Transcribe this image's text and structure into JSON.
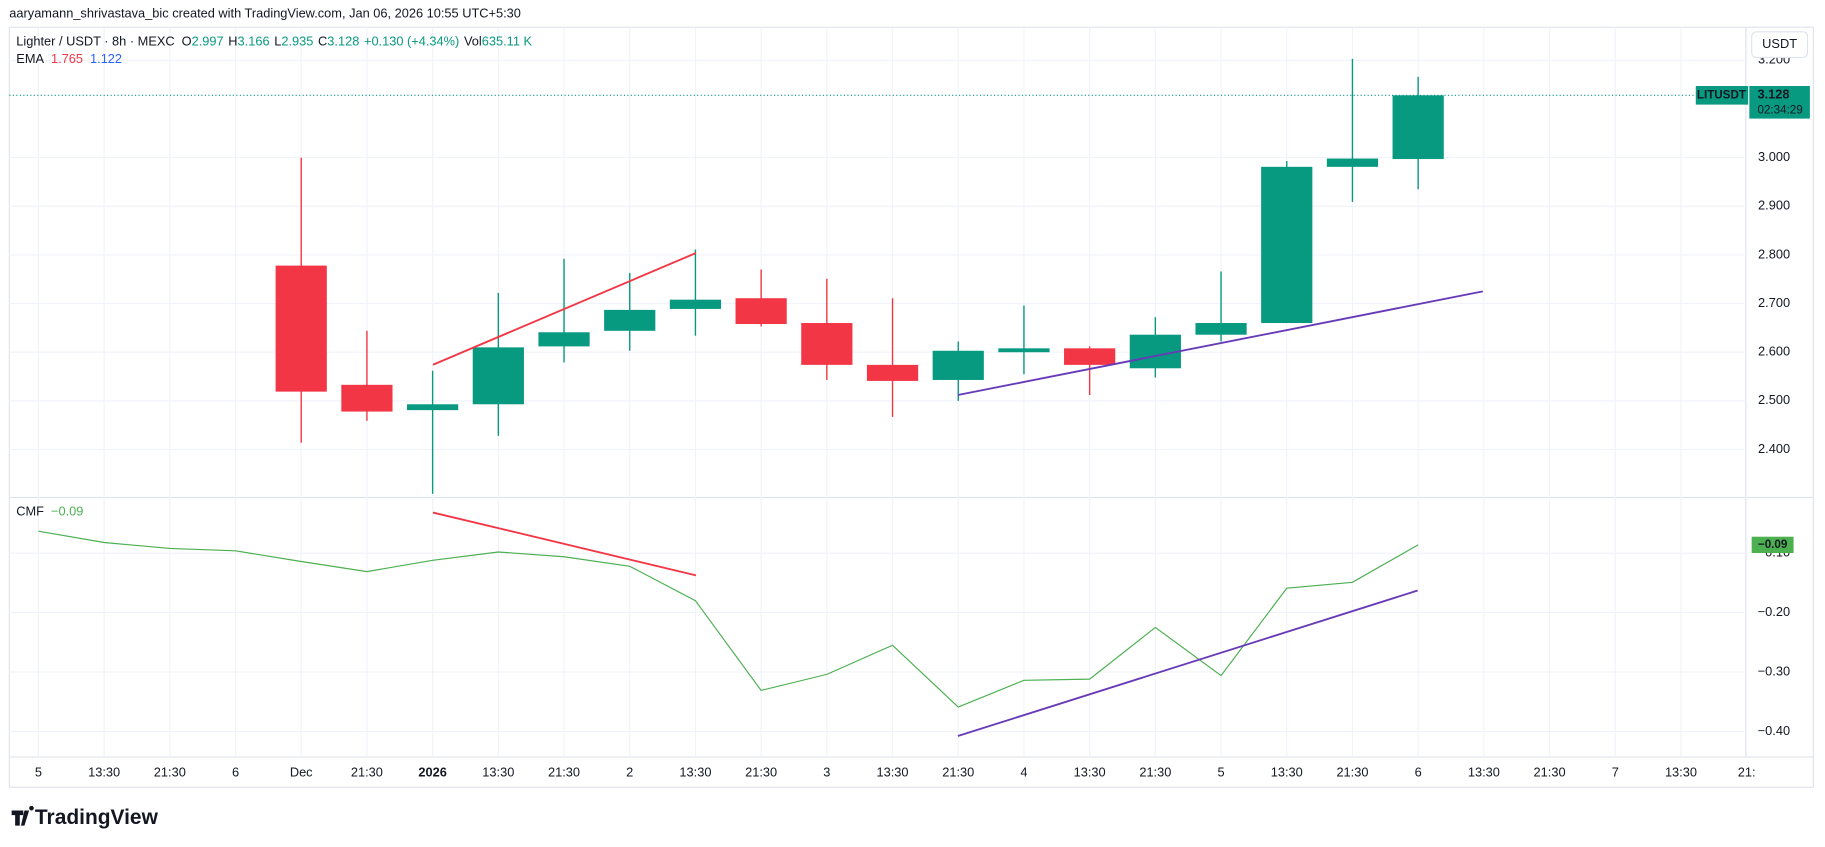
{
  "credit": "aaryamann_shrivastava_bic created with TradingView.com, Jan 06, 2026 10:55 UTC+5:30",
  "legend": {
    "symbol": "Lighter / USDT · 8h · MEXC",
    "ohlc": [
      {
        "label": "O",
        "value": "2.997"
      },
      {
        "label": "H",
        "value": "3.166"
      },
      {
        "label": "L",
        "value": "2.935"
      },
      {
        "label": "C",
        "value": "3.128"
      }
    ],
    "change": "+0.130 (+4.34%)",
    "vol_label": "Vol",
    "vol": "635.11 K",
    "ema_label": "EMA",
    "ema_values": [
      "1.765",
      "1.122"
    ]
  },
  "currency": "USDT",
  "price_label": {
    "symbol": "LITUSDT",
    "price": "3.128",
    "countdown": "02:34:29"
  },
  "logo": "TradingView",
  "chart_data": [
    {
      "type": "candlestick",
      "categories": [
        "5",
        "13:30",
        "21:30",
        "6",
        "Dec",
        "21:30",
        "2026",
        "13:30",
        "21:30",
        "2",
        "13:30",
        "21:30",
        "3",
        "13:30",
        "21:30",
        "4",
        "13:30",
        "21:30",
        "5",
        "13:30",
        "21:30",
        "6",
        "13:30",
        "21:30",
        "7",
        "13:30",
        "21:"
      ],
      "open": [
        null,
        null,
        null,
        null,
        2.778,
        2.533,
        2.481,
        2.493,
        2.612,
        2.644,
        2.689,
        2.711,
        2.66,
        2.574,
        2.543,
        2.6,
        2.608,
        2.567,
        2.636,
        2.66,
        2.981,
        2.997,
        null,
        null,
        null,
        null,
        null
      ],
      "high": [
        null,
        null,
        null,
        null,
        3.0,
        2.644,
        2.562,
        2.722,
        2.792,
        2.763,
        2.811,
        2.77,
        2.751,
        2.711,
        2.622,
        2.696,
        2.612,
        2.672,
        2.766,
        2.993,
        3.203,
        3.166,
        null,
        null,
        null,
        null,
        null
      ],
      "low": [
        null,
        null,
        null,
        null,
        2.414,
        2.459,
        2.309,
        2.428,
        2.579,
        2.603,
        2.634,
        2.653,
        2.543,
        2.467,
        2.5,
        2.555,
        2.512,
        2.548,
        2.622,
        2.66,
        2.909,
        2.935,
        null,
        null,
        null,
        null,
        null
      ],
      "close": [
        null,
        null,
        null,
        null,
        2.519,
        2.478,
        2.493,
        2.61,
        2.641,
        2.687,
        2.708,
        2.658,
        2.574,
        2.541,
        2.603,
        2.608,
        2.574,
        2.636,
        2.66,
        2.981,
        2.998,
        3.128,
        null,
        null,
        null,
        null,
        null
      ],
      "up_color": "#089981",
      "down_color": "#f23645",
      "ylim": [
        2.304,
        3.268
      ],
      "yticks": [
        {
          "value": 2.4,
          "label": "2.400"
        },
        {
          "value": 2.5,
          "label": "2.500"
        },
        {
          "value": 2.6,
          "label": "2.600"
        },
        {
          "value": 2.7,
          "label": "2.700"
        },
        {
          "value": 2.8,
          "label": "2.800"
        },
        {
          "value": 2.9,
          "label": "2.900"
        },
        {
          "value": 3.0,
          "label": "3.000"
        },
        {
          "value": 3.2,
          "label": "3.200"
        }
      ],
      "grid": true
    },
    {
      "type": "line",
      "title": "CMF",
      "last_label": "−0.09",
      "color": "#4caf50",
      "values": [
        -0.063,
        -0.082,
        -0.092,
        -0.096,
        -0.114,
        -0.131,
        -0.112,
        -0.098,
        -0.106,
        -0.122,
        -0.18,
        -0.331,
        -0.304,
        -0.255,
        -0.359,
        -0.314,
        -0.312,
        -0.225,
        -0.306,
        -0.159,
        -0.149,
        -0.086,
        null,
        null,
        null,
        null,
        null
      ],
      "ylim": [
        -0.443,
        -0.012
      ],
      "yticks": [
        {
          "value": -0.1,
          "label": "−0.10"
        },
        {
          "value": -0.2,
          "label": "−0.20"
        },
        {
          "value": -0.3,
          "label": "−0.30"
        },
        {
          "value": -0.4,
          "label": "−0.40"
        }
      ],
      "grid": true
    }
  ]
}
